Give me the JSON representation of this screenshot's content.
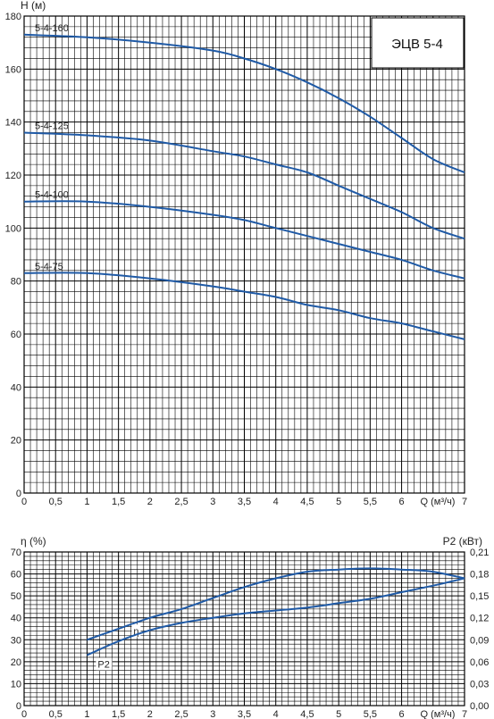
{
  "model_label": "ЭЦВ 5-4",
  "colors": {
    "curve": "#1f5aa6",
    "grid": "#000000",
    "text": "#222222"
  },
  "chart_data": [
    {
      "type": "line",
      "title": "",
      "ylabel": "H (м)",
      "xlabel": "Q (м³/ч)",
      "xlim": [
        0,
        7
      ],
      "ylim": [
        0,
        180
      ],
      "x_ticks": [
        "0",
        "0,5",
        "1",
        "1,5",
        "2",
        "2,5",
        "3",
        "3,5",
        "4",
        "4,5",
        "5",
        "5,5",
        "6"
      ],
      "y_ticks": [
        "0",
        "20",
        "40",
        "60",
        "80",
        "100",
        "120",
        "140",
        "160",
        "180"
      ],
      "grid": true,
      "series": [
        {
          "name": "5-4-160",
          "x": [
            0,
            1,
            2,
            3,
            3.5,
            4,
            4.5,
            5,
            5.5,
            6,
            6.5,
            7
          ],
          "values": [
            173,
            172,
            170,
            167,
            164,
            160,
            155,
            149,
            142,
            134,
            126,
            121
          ]
        },
        {
          "name": "5-4-125",
          "x": [
            0,
            1,
            2,
            3,
            3.5,
            4,
            4.5,
            5,
            5.5,
            6,
            6.5,
            7
          ],
          "values": [
            136,
            135,
            133,
            129,
            127,
            124,
            121,
            116,
            111,
            106,
            100,
            96
          ]
        },
        {
          "name": "5-4-100",
          "x": [
            0,
            1,
            2,
            3,
            3.5,
            4,
            4.5,
            5,
            5.5,
            6,
            6.5,
            7
          ],
          "values": [
            110,
            110,
            108,
            105,
            103,
            100,
            97,
            94,
            91,
            88,
            84,
            81
          ]
        },
        {
          "name": "5-4-75",
          "x": [
            0,
            1,
            2,
            3,
            3.5,
            4,
            4.5,
            5,
            5.5,
            6,
            6.5,
            7
          ],
          "values": [
            83,
            83,
            81,
            78,
            76,
            74,
            71,
            69,
            66,
            64,
            61,
            58
          ]
        }
      ]
    },
    {
      "type": "line",
      "title": "",
      "ylabel": "η (%)",
      "y2label": "P2 (кВт)",
      "xlabel": "Q (м³/ч)",
      "xlim": [
        0,
        7
      ],
      "ylim": [
        0,
        70
      ],
      "y2lim": [
        0,
        0.21
      ],
      "x_ticks": [
        "0",
        "0,5",
        "1",
        "1,5",
        "2",
        "2,5",
        "3",
        "3,5",
        "4",
        "4,5",
        "5",
        "5,5",
        "6"
      ],
      "y_ticks": [
        "0",
        "10",
        "20",
        "30",
        "40",
        "50",
        "60",
        "70"
      ],
      "y2_ticks": [
        "0,00",
        "0,03",
        "0,06",
        "0,09",
        "0,12",
        "0,15",
        "0,18",
        "0,21"
      ],
      "grid": true,
      "series": [
        {
          "name": "η",
          "axis": "left",
          "x": [
            1,
            1.5,
            2,
            2.5,
            3,
            3.5,
            4,
            4.5,
            5,
            5.5,
            6,
            6.5,
            7
          ],
          "values": [
            30,
            35,
            40,
            44,
            49,
            54,
            58,
            61,
            62,
            62.5,
            62,
            61,
            58
          ]
        },
        {
          "name": "P2",
          "axis": "right",
          "x": [
            1,
            1.5,
            2,
            2.5,
            3,
            3.5,
            4,
            4.5,
            5,
            5.5,
            6,
            6.5,
            7
          ],
          "values": [
            0.069,
            0.088,
            0.103,
            0.113,
            0.12,
            0.126,
            0.13,
            0.134,
            0.14,
            0.146,
            0.155,
            0.164,
            0.174
          ]
        }
      ]
    }
  ]
}
